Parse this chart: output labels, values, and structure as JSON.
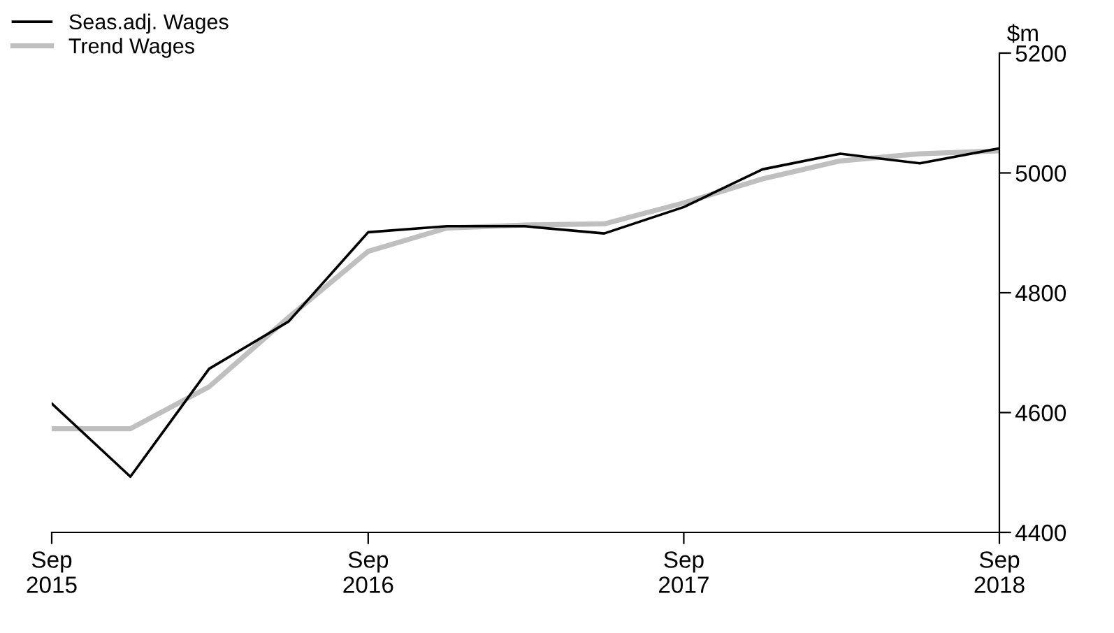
{
  "chart_data": {
    "type": "line",
    "ylabel": "$m",
    "x": [
      "2015-09",
      "2015-12",
      "2016-03",
      "2016-06",
      "2016-09",
      "2016-12",
      "2017-03",
      "2017-06",
      "2017-09",
      "2017-12",
      "2018-03",
      "2018-06",
      "2018-09"
    ],
    "series": [
      {
        "name": "Seas.adj. Wages",
        "color": "#000000",
        "values": [
          4615,
          4493,
          4673,
          4752,
          4901,
          4911,
          4911,
          4899,
          4943,
          5006,
          5032,
          5016,
          5041
        ]
      },
      {
        "name": "Trend Wages",
        "color": "#bfbfbf",
        "values": [
          4573,
          4573,
          4643,
          4759,
          4869,
          4908,
          4913,
          4915,
          4950,
          4990,
          5020,
          5032,
          5037
        ]
      }
    ],
    "xlim": [
      "2015-09",
      "2018-09"
    ],
    "xticks": [
      {
        "value": "2015-09",
        "label": "Sep\n2015"
      },
      {
        "value": "2016-09",
        "label": "Sep\n2016"
      },
      {
        "value": "2017-09",
        "label": "Sep\n2017"
      },
      {
        "value": "2018-09",
        "label": "Sep\n2018"
      }
    ],
    "ylim": [
      4400,
      5200
    ],
    "yticks": [
      4400,
      4600,
      4800,
      5000,
      5200
    ],
    "grid": false,
    "legend": "top left"
  }
}
